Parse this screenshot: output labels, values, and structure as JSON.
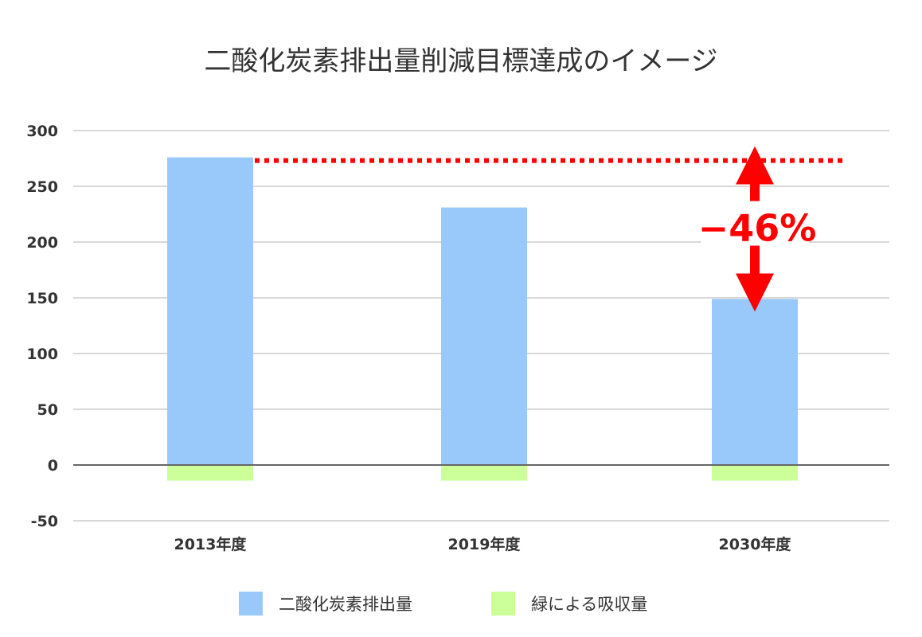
{
  "chart_data": {
    "type": "bar",
    "title": "二酸化炭素排出量削減目標達成のイメージ",
    "categories": [
      "2013年度",
      "2019年度",
      "2030年度"
    ],
    "series": [
      {
        "name": "二酸化炭素排出量",
        "values": [
          276,
          231,
          149
        ],
        "color": "#99c9fb"
      },
      {
        "name": "緑による吸収量",
        "values": [
          -14,
          -14,
          -14
        ],
        "color": "#ccff99"
      }
    ],
    "ylim": [
      -50,
      300
    ],
    "yticks": [
      300,
      250,
      200,
      150,
      100,
      50,
      0,
      -50
    ],
    "grid": true,
    "legend_position": "bottom",
    "reference_line": {
      "value": 276,
      "color": "#ff0000",
      "style": "dotted"
    },
    "annotation": {
      "text": "−46%",
      "from_value": 276,
      "to_value": 149,
      "category_index": 2,
      "color": "#ff0000"
    }
  }
}
